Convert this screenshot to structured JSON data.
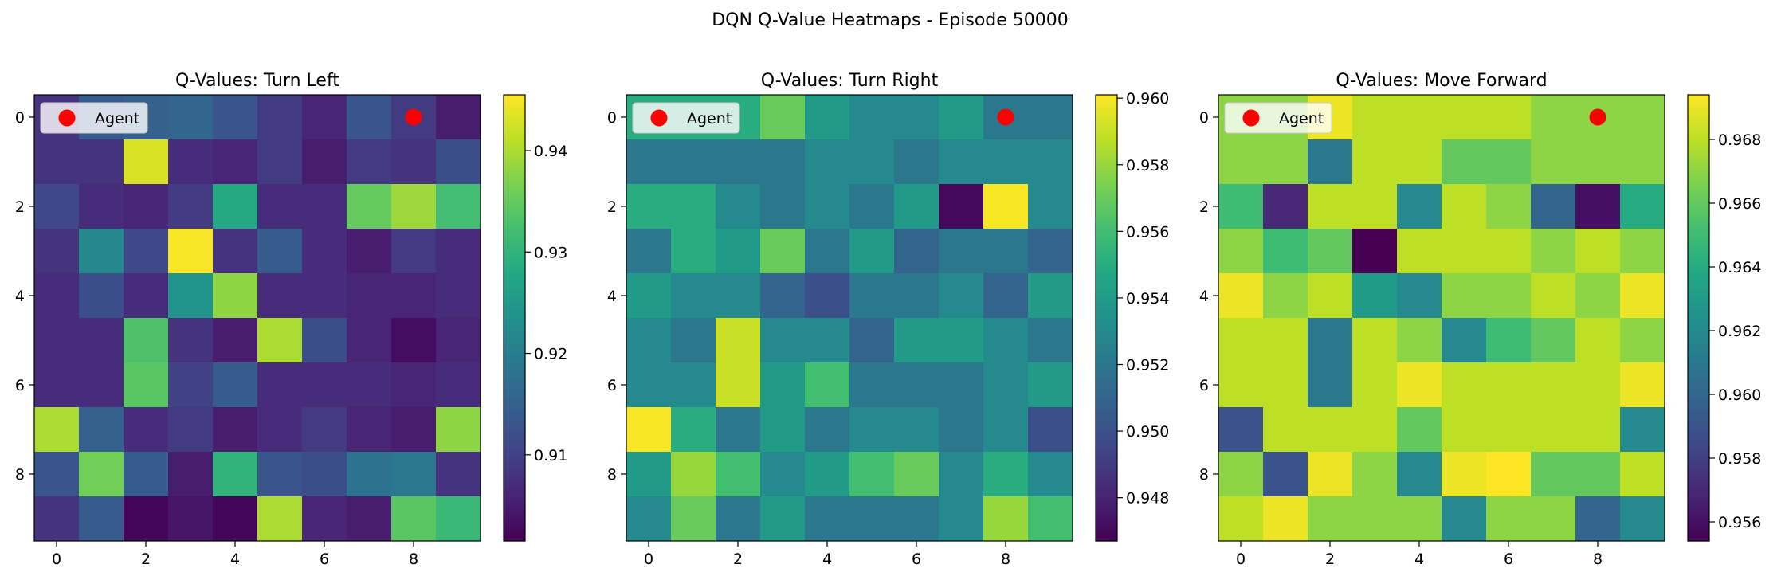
{
  "figure": {
    "suptitle": "DQN Q-Value Heatmaps - Episode 50000"
  },
  "chart_data": [
    {
      "type": "heatmap",
      "title": "Q-Values: Turn Left",
      "colormap": "viridis",
      "xlabel": "",
      "ylabel": "",
      "x_ticks": [
        0,
        2,
        4,
        6,
        8
      ],
      "y_ticks": [
        0,
        2,
        4,
        6,
        8
      ],
      "vmin": 0.9015,
      "vmax": 0.9455,
      "colorbar_ticks": [
        "0.91",
        "0.92",
        "0.93",
        "0.94"
      ],
      "colorbar_tick_values": [
        0.91,
        0.92,
        0.93,
        0.94
      ],
      "agent": {
        "label": "Agent",
        "row": 0,
        "col": 8,
        "color": "#ff0000"
      },
      "grid": [
        [
          0.908,
          0.914,
          0.915,
          0.916,
          0.913,
          0.909,
          0.906,
          0.913,
          0.909,
          0.905
        ],
        [
          0.908,
          0.908,
          0.943,
          0.907,
          0.906,
          0.909,
          0.905,
          0.909,
          0.908,
          0.912
        ],
        [
          0.911,
          0.907,
          0.906,
          0.909,
          0.928,
          0.907,
          0.907,
          0.935,
          0.939,
          0.932
        ],
        [
          0.908,
          0.922,
          0.911,
          0.945,
          0.908,
          0.914,
          0.907,
          0.905,
          0.909,
          0.907
        ],
        [
          0.907,
          0.912,
          0.907,
          0.924,
          0.938,
          0.907,
          0.907,
          0.906,
          0.906,
          0.907
        ],
        [
          0.907,
          0.907,
          0.933,
          0.908,
          0.905,
          0.94,
          0.912,
          0.906,
          0.903,
          0.906
        ],
        [
          0.907,
          0.907,
          0.934,
          0.91,
          0.914,
          0.907,
          0.907,
          0.907,
          0.906,
          0.907
        ],
        [
          0.94,
          0.915,
          0.907,
          0.909,
          0.905,
          0.907,
          0.909,
          0.906,
          0.905,
          0.938
        ],
        [
          0.913,
          0.936,
          0.914,
          0.905,
          0.93,
          0.913,
          0.912,
          0.918,
          0.919,
          0.908
        ],
        [
          0.908,
          0.914,
          0.902,
          0.904,
          0.902,
          0.94,
          0.906,
          0.905,
          0.934,
          0.931
        ]
      ]
    },
    {
      "type": "heatmap",
      "title": "Q-Values: Turn Right",
      "colormap": "viridis",
      "xlabel": "",
      "ylabel": "",
      "x_ticks": [
        0,
        2,
        4,
        6,
        8
      ],
      "y_ticks": [
        0,
        2,
        4,
        6,
        8
      ],
      "vmin": 0.9467,
      "vmax": 0.9601,
      "colorbar_ticks": [
        "0.948",
        "0.950",
        "0.952",
        "0.954",
        "0.956",
        "0.958",
        "0.960"
      ],
      "colorbar_tick_values": [
        0.948,
        0.95,
        0.952,
        0.954,
        0.956,
        0.958,
        0.96
      ],
      "agent": {
        "label": "Agent",
        "row": 0,
        "col": 8,
        "color": "#ff0000"
      },
      "grid": [
        [
          0.955,
          0.955,
          0.955,
          0.957,
          0.954,
          0.953,
          0.953,
          0.954,
          0.952,
          0.952
        ],
        [
          0.952,
          0.952,
          0.952,
          0.952,
          0.953,
          0.953,
          0.952,
          0.953,
          0.953,
          0.953
        ],
        [
          0.955,
          0.955,
          0.953,
          0.952,
          0.953,
          0.952,
          0.954,
          0.947,
          0.96,
          0.953
        ],
        [
          0.952,
          0.955,
          0.954,
          0.957,
          0.952,
          0.954,
          0.951,
          0.952,
          0.952,
          0.951
        ],
        [
          0.954,
          0.953,
          0.953,
          0.951,
          0.95,
          0.952,
          0.952,
          0.953,
          0.951,
          0.954
        ],
        [
          0.953,
          0.952,
          0.959,
          0.953,
          0.953,
          0.951,
          0.954,
          0.954,
          0.953,
          0.952
        ],
        [
          0.953,
          0.953,
          0.959,
          0.954,
          0.956,
          0.952,
          0.952,
          0.952,
          0.953,
          0.954
        ],
        [
          0.96,
          0.955,
          0.952,
          0.954,
          0.952,
          0.953,
          0.953,
          0.952,
          0.953,
          0.95
        ],
        [
          0.954,
          0.958,
          0.956,
          0.953,
          0.954,
          0.956,
          0.957,
          0.953,
          0.955,
          0.953
        ],
        [
          0.953,
          0.957,
          0.952,
          0.954,
          0.952,
          0.952,
          0.952,
          0.953,
          0.958,
          0.956
        ]
      ]
    },
    {
      "type": "heatmap",
      "title": "Q-Values: Move Forward",
      "colormap": "viridis",
      "xlabel": "",
      "ylabel": "",
      "x_ticks": [
        0,
        2,
        4,
        6,
        8
      ],
      "y_ticks": [
        0,
        2,
        4,
        6,
        8
      ],
      "vmin": 0.9554,
      "vmax": 0.9694,
      "colorbar_ticks": [
        "0.956",
        "0.958",
        "0.960",
        "0.962",
        "0.964",
        "0.966",
        "0.968"
      ],
      "colorbar_tick_values": [
        0.956,
        0.958,
        0.96,
        0.962,
        0.964,
        0.966,
        0.968
      ],
      "agent": {
        "label": "Agent",
        "row": 0,
        "col": 8,
        "color": "#ff0000"
      },
      "grid": [
        [
          0.967,
          0.967,
          0.969,
          0.968,
          0.968,
          0.968,
          0.968,
          0.967,
          0.967,
          0.967
        ],
        [
          0.967,
          0.967,
          0.961,
          0.968,
          0.968,
          0.966,
          0.966,
          0.967,
          0.967,
          0.967
        ],
        [
          0.965,
          0.957,
          0.968,
          0.968,
          0.962,
          0.968,
          0.967,
          0.96,
          0.956,
          0.964
        ],
        [
          0.967,
          0.965,
          0.966,
          0.9554,
          0.968,
          0.968,
          0.968,
          0.967,
          0.968,
          0.967
        ],
        [
          0.969,
          0.967,
          0.968,
          0.963,
          0.962,
          0.967,
          0.967,
          0.968,
          0.967,
          0.969
        ],
        [
          0.968,
          0.968,
          0.961,
          0.968,
          0.967,
          0.962,
          0.965,
          0.966,
          0.968,
          0.967
        ],
        [
          0.968,
          0.968,
          0.961,
          0.968,
          0.969,
          0.968,
          0.968,
          0.968,
          0.968,
          0.969
        ],
        [
          0.959,
          0.968,
          0.968,
          0.968,
          0.966,
          0.968,
          0.968,
          0.968,
          0.968,
          0.962
        ],
        [
          0.967,
          0.959,
          0.969,
          0.967,
          0.962,
          0.969,
          0.9694,
          0.966,
          0.966,
          0.968
        ],
        [
          0.968,
          0.969,
          0.967,
          0.967,
          0.967,
          0.962,
          0.967,
          0.967,
          0.96,
          0.962
        ]
      ]
    }
  ]
}
